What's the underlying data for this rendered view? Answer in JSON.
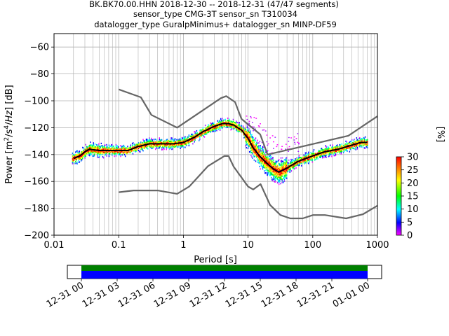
{
  "title": {
    "line1": "BK.BK70.00.HHN   2018-12-30 -- 2018-12-31  (47/47 segments)",
    "line2": "sensor_type CMG-3T sensor_sn T310034",
    "line3": "datalogger_type GuralpMinimus+ datalogger_sn MINP-DF59"
  },
  "chart_data": [
    {
      "type": "heatmap",
      "subtype": "probabilistic power spectral density",
      "xlabel": "Period [s]",
      "ylabel": "Power [m²/s⁴/Hz] [dB]",
      "xscale": "log",
      "xlim": [
        0.01,
        1000
      ],
      "ylim": [
        -200,
        -50
      ],
      "x_ticks": [
        {
          "value": 0.01,
          "label": "0.01"
        },
        {
          "value": 0.1,
          "label": "0.1"
        },
        {
          "value": 1,
          "label": "1"
        },
        {
          "value": 10,
          "label": "10"
        },
        {
          "value": 100,
          "label": "100"
        },
        {
          "value": 1000,
          "label": "1000"
        }
      ],
      "y_ticks": [
        {
          "value": -60,
          "label": "−60"
        },
        {
          "value": -80,
          "label": "−80"
        },
        {
          "value": -100,
          "label": "−100"
        },
        {
          "value": -120,
          "label": "−120"
        },
        {
          "value": -140,
          "label": "−140"
        },
        {
          "value": -160,
          "label": "−160"
        },
        {
          "value": -180,
          "label": "−180"
        },
        {
          "value": -200,
          "label": "−200"
        }
      ],
      "grid": true,
      "colorbar": {
        "label": "[%]",
        "min": 0,
        "max": 30,
        "ticks": [
          {
            "value": 0,
            "label": "0"
          },
          {
            "value": 5,
            "label": "5"
          },
          {
            "value": 10,
            "label": "10"
          },
          {
            "value": 15,
            "label": "15"
          },
          {
            "value": 20,
            "label": "20"
          },
          {
            "value": 25,
            "label": "25"
          },
          {
            "value": 30,
            "label": "30"
          }
        ]
      },
      "series": [
        {
          "role": "nhnm",
          "color": "#666666",
          "points": [
            [
              0.1,
              -91.5
            ],
            [
              0.22,
              -97.4
            ],
            [
              0.32,
              -110.5
            ],
            [
              0.8,
              -120
            ],
            [
              3.8,
              -98
            ],
            [
              4.6,
              -96.5
            ],
            [
              6.3,
              -101
            ],
            [
              7.9,
              -113.5
            ],
            [
              15.4,
              -125
            ],
            [
              20,
              -140
            ],
            [
              354.8,
              -126
            ],
            [
              1000,
              -111.5
            ]
          ]
        },
        {
          "role": "nlnm",
          "color": "#666666",
          "points": [
            [
              0.1,
              -168
            ],
            [
              0.17,
              -166.7
            ],
            [
              0.4,
              -166.7
            ],
            [
              0.8,
              -169.2
            ],
            [
              1.24,
              -163.7
            ],
            [
              2.4,
              -148.6
            ],
            [
              4.3,
              -141.1
            ],
            [
              5,
              -141.1
            ],
            [
              6,
              -149
            ],
            [
              10,
              -163.8
            ],
            [
              12,
              -166
            ],
            [
              15.6,
              -162
            ],
            [
              21.9,
              -177.5
            ],
            [
              31.6,
              -185
            ],
            [
              45,
              -187.5
            ],
            [
              70,
              -187.5
            ],
            [
              101,
              -185
            ],
            [
              154,
              -185
            ],
            [
              328,
              -187.5
            ],
            [
              600,
              -184.4
            ],
            [
              1000,
              -178
            ]
          ]
        },
        {
          "role": "mode",
          "color": "#000000",
          "points": [
            [
              0.02,
              -143
            ],
            [
              0.025,
              -141
            ],
            [
              0.03,
              -138
            ],
            [
              0.035,
              -136
            ],
            [
              0.05,
              -137
            ],
            [
              0.1,
              -137
            ],
            [
              0.14,
              -137
            ],
            [
              0.2,
              -134
            ],
            [
              0.3,
              -132
            ],
            [
              0.5,
              -132
            ],
            [
              0.7,
              -132
            ],
            [
              1,
              -131
            ],
            [
              1.5,
              -127
            ],
            [
              2,
              -123
            ],
            [
              3,
              -119
            ],
            [
              4,
              -117
            ],
            [
              5,
              -117
            ],
            [
              6,
              -118
            ],
            [
              8,
              -122
            ],
            [
              10,
              -128
            ],
            [
              12,
              -135
            ],
            [
              15,
              -141
            ],
            [
              20,
              -147
            ],
            [
              25,
              -151
            ],
            [
              30,
              -153
            ],
            [
              40,
              -150
            ],
            [
              60,
              -145
            ],
            [
              100,
              -141
            ],
            [
              150,
              -138
            ],
            [
              250,
              -136
            ],
            [
              400,
              -133
            ],
            [
              550,
              -131
            ],
            [
              700,
              -131
            ]
          ]
        }
      ]
    },
    {
      "type": "heatmap",
      "subtype": "data availability timeline",
      "x_ticks": [
        "12-31 00",
        "12-31 03",
        "12-31 06",
        "12-31 09",
        "12-31 12",
        "12-31 15",
        "12-31 18",
        "12-31 21",
        "01-01 00"
      ],
      "bands": [
        {
          "role": "segments",
          "color": "#008000"
        },
        {
          "role": "coverage",
          "color": "#0000ff"
        }
      ]
    }
  ]
}
